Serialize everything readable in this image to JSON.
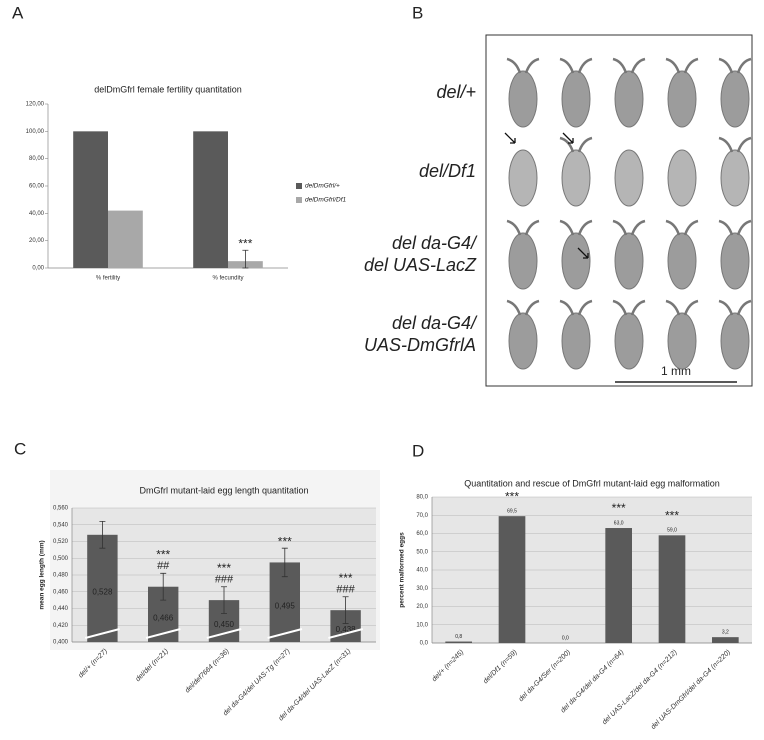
{
  "panels": [
    "A",
    "B",
    "C",
    "D"
  ],
  "photo": {
    "rows": [
      [
        "del/+"
      ],
      [
        "del/Df1"
      ],
      [
        "del da-G4/",
        "del UAS-LacZ"
      ],
      [
        "del da-G4/",
        "UAS-DmGfrlA"
      ]
    ],
    "scale_bar": "1 mm"
  },
  "chart_data": [
    {
      "type": "bar",
      "title": "delDmGfrl female fertility quantitation",
      "categories": [
        "% fertility",
        "% fecundity"
      ],
      "series": [
        {
          "name": "delDmGfrl/+",
          "color": "#5a5a5a",
          "values": [
            100,
            100
          ]
        },
        {
          "name": "delDmGfrl/Df1",
          "color": "#a8a8a8",
          "values": [
            42,
            5
          ],
          "errors": [
            null,
            8
          ],
          "significance": [
            null,
            "***"
          ]
        }
      ],
      "ylim": [
        0,
        120
      ],
      "yticks": [
        {
          "value": 0,
          "label": "0,00"
        },
        {
          "value": 20,
          "label": "20,00"
        },
        {
          "value": 40,
          "label": "40,00"
        },
        {
          "value": 60,
          "label": "60,00"
        },
        {
          "value": 80,
          "label": "80,00"
        },
        {
          "value": 100,
          "label": "100,00"
        },
        {
          "value": 120,
          "label": "120,00"
        }
      ],
      "grid": false,
      "legend": "right"
    },
    {
      "type": "bar",
      "title": "DmGfrl mutant-laid egg length quantitation",
      "ylabel": "mean egg length (mm)",
      "categories": [
        "del/+ (n=27)",
        "del/del (n=21)",
        "del/def7664 (n=36)",
        "del da-G4/del UAS-Tg (n=27)",
        "del da-G4/del UAS-LacZ (n=31)"
      ],
      "values": [
        0.528,
        0.466,
        0.45,
        0.495,
        0.438
      ],
      "value_labels": [
        "0,528",
        "0,466",
        "0,450",
        "0,495",
        "0,438"
      ],
      "errors": [
        0.016,
        0.016,
        0.016,
        0.017,
        0.016
      ],
      "significance": [
        null,
        "***",
        "***",
        "***",
        "***"
      ],
      "rescue_significance": [
        null,
        "##",
        "###",
        null,
        "###"
      ],
      "color": "#5a5a5a",
      "ylim": [
        0.4,
        0.56
      ],
      "yticks": [
        {
          "value": 0.4,
          "label": "0,400"
        },
        {
          "value": 0.42,
          "label": "0,420"
        },
        {
          "value": 0.44,
          "label": "0,440"
        },
        {
          "value": 0.46,
          "label": "0,460"
        },
        {
          "value": 0.48,
          "label": "0,480"
        },
        {
          "value": 0.5,
          "label": "0,500"
        },
        {
          "value": 0.52,
          "label": "0,520"
        },
        {
          "value": 0.54,
          "label": "0,540"
        },
        {
          "value": 0.56,
          "label": "0,560"
        }
      ],
      "grid": true
    },
    {
      "type": "bar",
      "title": "Quantitation and rescue of DmGfrl mutant-laid egg malformation",
      "ylabel": "percent malformed eggs",
      "categories": [
        "del/+ (n=245)",
        "del/Df1 (n=59)",
        "del da-G4/Ser (n=200)",
        "del da-G4/del da-G4 (n=64)",
        "del UAS-LacZ/del da-G4 (n=212)",
        "del UAS-DmGfrl/del da-G4 (n=220)"
      ],
      "values": [
        0.8,
        69.5,
        0.0,
        63.0,
        59.0,
        3.2
      ],
      "value_labels": [
        "0,8",
        "69,5",
        "0,0",
        "63,0",
        "59,0",
        "3,2"
      ],
      "significance": [
        null,
        "***",
        null,
        "***",
        "***",
        null
      ],
      "color": "#5a5a5a",
      "ylim": [
        0,
        80
      ],
      "yticks": [
        {
          "value": 0,
          "label": "0,0"
        },
        {
          "value": 10,
          "label": "10,0"
        },
        {
          "value": 20,
          "label": "20,0"
        },
        {
          "value": 30,
          "label": "30,0"
        },
        {
          "value": 40,
          "label": "40,0"
        },
        {
          "value": 50,
          "label": "50,0"
        },
        {
          "value": 60,
          "label": "60,0"
        },
        {
          "value": 70,
          "label": "70,0"
        },
        {
          "value": 80,
          "label": "80,0"
        }
      ],
      "grid": true
    }
  ]
}
